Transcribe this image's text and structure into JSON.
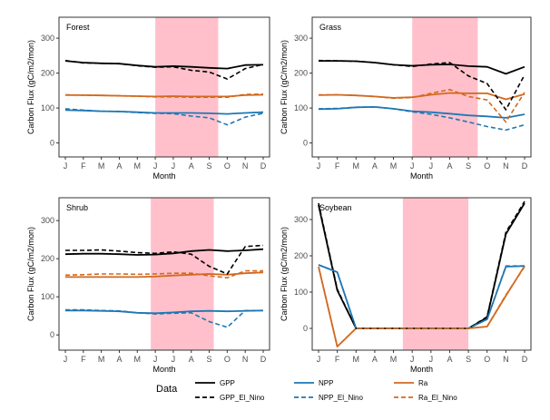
{
  "colors": {
    "background": "#ffffff",
    "highlight": "#ffc0cb",
    "GPP": "#000000",
    "NPP": "#1f77b4",
    "Ra": "#d2691e"
  },
  "legend": {
    "title": "Data",
    "entries": [
      {
        "label": "GPP",
        "series": "GPP",
        "dashed": false
      },
      {
        "label": "GPP_El_Nino",
        "series": "GPP",
        "dashed": true
      },
      {
        "label": "NPP",
        "series": "NPP",
        "dashed": false
      },
      {
        "label": "NPP_El_Nino",
        "series": "NPP",
        "dashed": true
      },
      {
        "label": "Ra",
        "series": "Ra",
        "dashed": false
      },
      {
        "label": "Ra_El_Nino",
        "series": "Ra",
        "dashed": true
      }
    ]
  },
  "chart_data": [
    {
      "type": "line",
      "title": "Forest",
      "xlabel": "Month",
      "ylabel": "Carbon Flux (gC/m2/mon)",
      "categories": [
        "J",
        "F",
        "M",
        "A",
        "M",
        "J",
        "J",
        "A",
        "S",
        "O",
        "N",
        "D"
      ],
      "yticks": [
        0,
        100,
        200,
        300
      ],
      "ylim": [
        -40,
        360
      ],
      "highlight": {
        "from": 5.0,
        "to": 8.5
      },
      "grid": false,
      "series": [
        {
          "name": "GPP",
          "values": [
            235,
            230,
            228,
            227,
            222,
            218,
            220,
            218,
            215,
            213,
            223,
            224
          ]
        },
        {
          "name": "GPP_El_Nino",
          "values": [
            236,
            229,
            228,
            227,
            221,
            217,
            218,
            208,
            203,
            183,
            213,
            225
          ]
        },
        {
          "name": "NPP",
          "values": [
            94,
            93,
            91,
            90,
            88,
            86,
            86,
            86,
            85,
            83,
            86,
            88
          ]
        },
        {
          "name": "NPP_El_Nino",
          "values": [
            98,
            94,
            91,
            90,
            87,
            85,
            84,
            77,
            72,
            52,
            74,
            85
          ]
        },
        {
          "name": "Ra",
          "values": [
            137,
            137,
            136,
            135,
            134,
            133,
            134,
            133,
            133,
            133,
            137,
            138
          ]
        },
        {
          "name": "Ra_El_Nino",
          "values": [
            138,
            137,
            136,
            135,
            134,
            132,
            132,
            131,
            131,
            131,
            139,
            140
          ]
        }
      ]
    },
    {
      "type": "line",
      "title": "Grass",
      "xlabel": "Month",
      "ylabel": "Carbon Flux (gC/m2/mon)",
      "categories": [
        "J",
        "F",
        "M",
        "A",
        "M",
        "J",
        "J",
        "A",
        "S",
        "O",
        "N",
        "D"
      ],
      "yticks": [
        0,
        100,
        200,
        300
      ],
      "ylim": [
        -40,
        360
      ],
      "highlight": {
        "from": 5.0,
        "to": 8.5
      },
      "grid": false,
      "series": [
        {
          "name": "GPP",
          "values": [
            235,
            235,
            234,
            230,
            224,
            221,
            224,
            225,
            220,
            218,
            198,
            218
          ]
        },
        {
          "name": "GPP_El_Nino",
          "values": [
            236,
            235,
            234,
            230,
            224,
            219,
            226,
            230,
            192,
            170,
            95,
            195
          ]
        },
        {
          "name": "NPP",
          "values": [
            97,
            98,
            102,
            103,
            98,
            91,
            88,
            84,
            79,
            76,
            72,
            82
          ]
        },
        {
          "name": "NPP_El_Nino",
          "values": [
            98,
            99,
            102,
            103,
            98,
            89,
            82,
            72,
            60,
            47,
            37,
            52
          ]
        },
        {
          "name": "Ra",
          "values": [
            137,
            138,
            136,
            133,
            129,
            131,
            138,
            143,
            142,
            142,
            125,
            140
          ]
        },
        {
          "name": "Ra_El_Nino",
          "values": [
            138,
            138,
            136,
            133,
            128,
            130,
            142,
            153,
            133,
            123,
            60,
            145
          ]
        }
      ]
    },
    {
      "type": "line",
      "title": "Shrub",
      "xlabel": "Month",
      "ylabel": "Carbon Flux (gC/m2/mon)",
      "categories": [
        "J",
        "F",
        "M",
        "A",
        "M",
        "J",
        "J",
        "A",
        "S",
        "O",
        "N",
        "D"
      ],
      "yticks": [
        0,
        100,
        200,
        300
      ],
      "ylim": [
        -40,
        360
      ],
      "highlight": {
        "from": 4.75,
        "to": 8.25
      },
      "grid": false,
      "series": [
        {
          "name": "GPP",
          "values": [
            212,
            213,
            213,
            212,
            210,
            211,
            214,
            220,
            223,
            220,
            222,
            225
          ]
        },
        {
          "name": "GPP_El_Nino",
          "values": [
            222,
            222,
            223,
            220,
            216,
            214,
            218,
            212,
            180,
            160,
            232,
            235
          ]
        },
        {
          "name": "NPP",
          "values": [
            64,
            64,
            63,
            62,
            58,
            57,
            59,
            62,
            63,
            62,
            63,
            64
          ]
        },
        {
          "name": "NPP_El_Nino",
          "values": [
            66,
            66,
            64,
            63,
            58,
            55,
            57,
            58,
            35,
            20,
            64,
            64
          ]
        },
        {
          "name": "Ra",
          "values": [
            152,
            152,
            152,
            152,
            152,
            153,
            156,
            158,
            160,
            158,
            162,
            164
          ]
        },
        {
          "name": "Ra_El_Nino",
          "values": [
            157,
            158,
            160,
            160,
            159,
            160,
            162,
            162,
            155,
            150,
            168,
            168
          ]
        }
      ]
    },
    {
      "type": "line",
      "title": "Soybean",
      "xlabel": "Month",
      "ylabel": "Carbon Flux (gC/m2/mon)",
      "categories": [
        "J",
        "F",
        "M",
        "A",
        "M",
        "J",
        "J",
        "A",
        "S",
        "O",
        "N",
        "D"
      ],
      "yticks": [
        0,
        100,
        200,
        300
      ],
      "ylim": [
        -60,
        360
      ],
      "highlight": {
        "from": 4.5,
        "to": 8.0
      },
      "grid": false,
      "series": [
        {
          "name": "GPP",
          "values": [
            340,
            105,
            0,
            0,
            0,
            0,
            0,
            0,
            0,
            30,
            260,
            345
          ]
        },
        {
          "name": "GPP_El_Nino",
          "values": [
            345,
            108,
            0,
            0,
            0,
            0,
            0,
            0,
            0,
            32,
            265,
            350
          ]
        },
        {
          "name": "NPP",
          "values": [
            175,
            155,
            0,
            0,
            0,
            0,
            0,
            0,
            0,
            25,
            170,
            172
          ]
        },
        {
          "name": "NPP_El_Nino",
          "values": [
            175,
            155,
            0,
            0,
            0,
            0,
            0,
            0,
            0,
            25,
            172,
            172
          ]
        },
        {
          "name": "Ra",
          "values": [
            170,
            -50,
            0,
            0,
            0,
            0,
            0,
            0,
            0,
            5,
            90,
            172
          ]
        },
        {
          "name": "Ra_El_Nino",
          "values": [
            170,
            -50,
            0,
            0,
            0,
            0,
            0,
            0,
            0,
            5,
            92,
            170
          ]
        }
      ]
    }
  ]
}
